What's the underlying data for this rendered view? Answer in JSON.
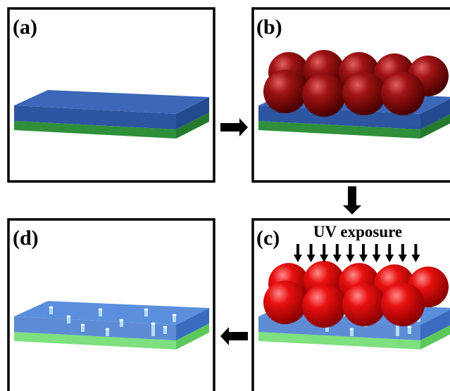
{
  "panels": [
    {
      "label": "(a)"
    },
    {
      "label": "(b)"
    },
    {
      "label": "(c)",
      "annotation": "UV exposure"
    },
    {
      "label": "(d)"
    }
  ]
}
